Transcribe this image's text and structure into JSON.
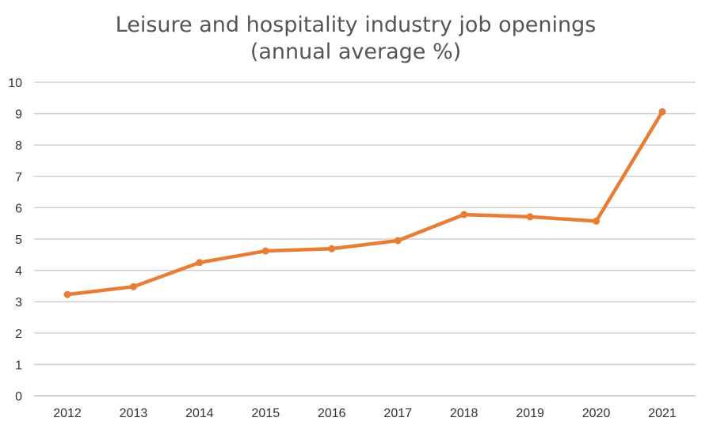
{
  "chart_data": {
    "type": "line",
    "title_lines": [
      "Leisure and hospitality industry job openings",
      "(annual average %)"
    ],
    "xlabel": "",
    "ylabel": "",
    "x": [
      "2012",
      "2013",
      "2014",
      "2015",
      "2016",
      "2017",
      "2018",
      "2019",
      "2020",
      "2021"
    ],
    "series": [
      {
        "values": [
          3.23,
          3.48,
          4.25,
          4.62,
          4.69,
          4.95,
          5.78,
          5.71,
          5.57,
          9.06
        ]
      }
    ],
    "ylim": [
      0,
      10
    ],
    "yticks": [
      "0",
      "1",
      "2",
      "3",
      "4",
      "5",
      "6",
      "7",
      "8",
      "9",
      "10"
    ],
    "grid": true,
    "legend": "none",
    "colors": {
      "line": "#E87E36",
      "grid": "#d0d0d0",
      "title": "#555555",
      "ticks": "#333333"
    }
  }
}
